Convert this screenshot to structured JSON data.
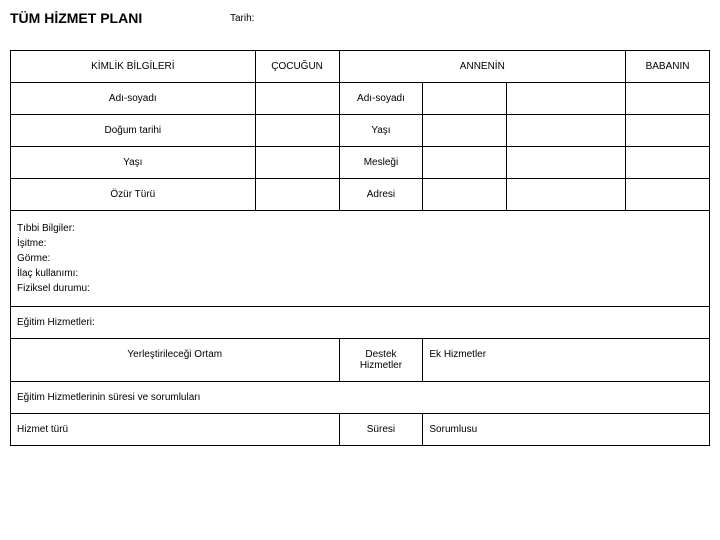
{
  "header": {
    "title": "TÜM HİZMET PLANI",
    "date_label": "Tarih:"
  },
  "table1": {
    "h_kimlik": "KİMLİK BİLGİLERİ",
    "h_cocugun": "ÇOCUĞUN",
    "h_annenin": "ANNENİN",
    "h_babanin": "BABANIN",
    "r1_left": "Adı-soyadı",
    "r1_mid": "Adı-soyadı",
    "r2_left": "Doğum tarihi",
    "r2_mid": "Yaşı",
    "r3_left": "Yaşı",
    "r3_mid": "Mesleği",
    "r4_left": "Özür Türü",
    "r4_mid": "Adresi"
  },
  "medical": {
    "l1": "Tıbbi Bilgiler:",
    "l2": "İşitme:",
    "l3": "Görme:",
    "l4": "İlaç kullanımı:",
    "l5": "Fiziksel durumu:"
  },
  "services": {
    "egitim": "Eğitim Hizmetleri:",
    "ortam": "Yerleştirileceği Ortam",
    "destek": "Destek Hizmetler",
    "ek": "Ek Hizmetler",
    "sure_sorumlu": "Eğitim Hizmetlerinin süresi ve sorumluları",
    "hizmet_turu": "Hizmet türü",
    "suresi": "Süresi",
    "sorumlusu": "Sorumlusu"
  },
  "style": {
    "border_color": "#000000",
    "bg": "#ffffff",
    "text_color": "#000000",
    "title_fontsize": 14,
    "body_fontsize": 10
  }
}
